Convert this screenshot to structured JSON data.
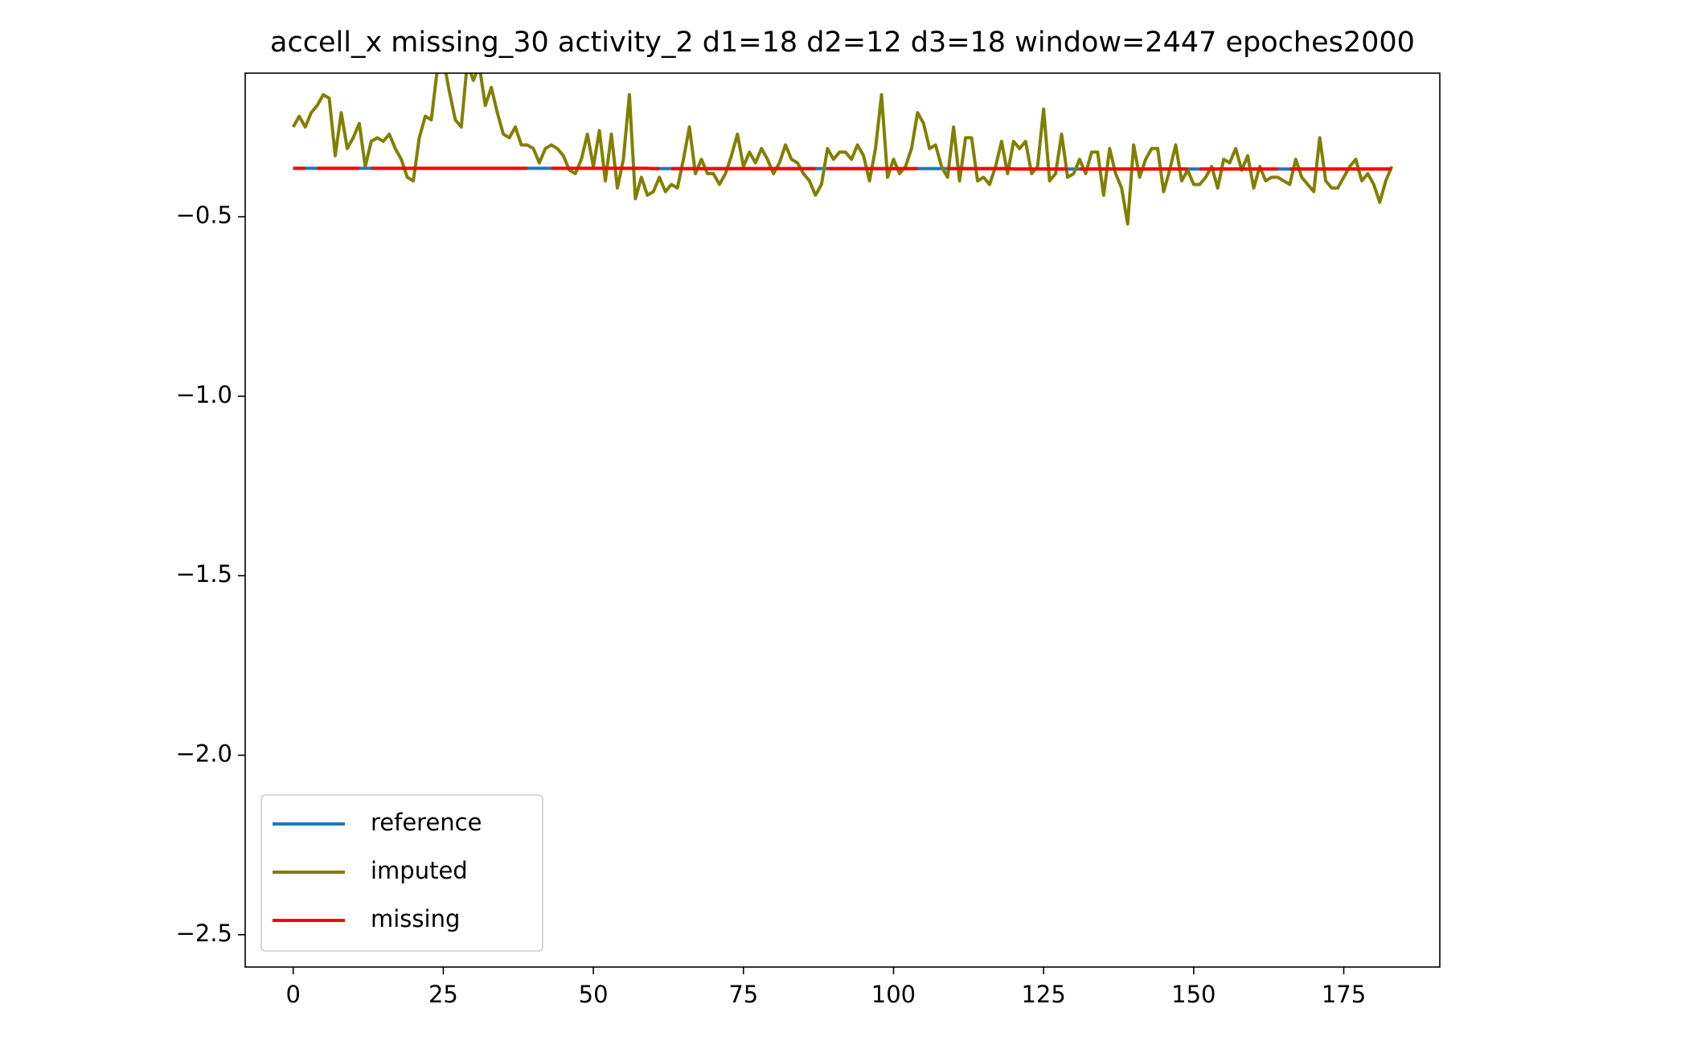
{
  "chart_data": {
    "type": "line",
    "title": "accell_x missing_30 activity_2 d1=18 d2=12 d3=18 window=2447 epoches2000",
    "x": [
      0,
      1,
      2,
      3,
      4,
      5,
      6,
      7,
      8,
      9,
      10,
      11,
      12,
      13,
      14,
      15,
      16,
      17,
      18,
      19,
      20,
      21,
      22,
      23,
      24,
      25,
      26,
      27,
      28,
      29,
      30,
      31,
      32,
      33,
      34,
      35,
      36,
      37,
      38,
      39,
      40,
      41,
      42,
      43,
      44,
      45,
      46,
      47,
      48,
      49,
      50,
      51,
      52,
      53,
      54,
      55,
      56,
      57,
      58,
      59,
      60,
      61,
      62,
      63,
      64,
      65,
      66,
      67,
      68,
      69,
      70,
      71,
      72,
      73,
      74,
      75,
      76,
      77,
      78,
      79,
      80,
      81,
      82,
      83,
      84,
      85,
      86,
      87,
      88,
      89,
      90,
      91,
      92,
      93,
      94,
      95,
      96,
      97,
      98,
      99,
      100,
      101,
      102,
      103,
      104,
      105,
      106,
      107,
      108,
      109,
      110,
      111,
      112,
      113,
      114,
      115,
      116,
      117,
      118,
      119,
      120,
      121,
      122,
      123,
      124,
      125,
      126,
      127,
      128,
      129,
      130,
      131,
      132,
      133,
      134,
      135,
      136,
      137,
      138,
      139,
      140,
      141,
      142,
      143,
      144,
      145,
      146,
      147,
      148,
      149,
      150,
      151,
      152,
      153,
      154,
      155,
      156,
      157,
      158,
      159,
      160,
      161,
      162,
      163,
      164,
      165,
      166,
      167,
      168,
      169,
      170,
      171,
      172,
      173,
      174,
      175,
      176,
      177,
      178,
      179,
      180,
      181,
      182,
      183
    ],
    "series": [
      {
        "name": "reference",
        "color": "#1f77b4",
        "values": [
          -0.365,
          -0.365,
          -0.365,
          -0.365,
          -0.365,
          -0.365,
          -0.365,
          -0.365,
          -0.365,
          -0.365,
          -0.365,
          -0.365,
          -0.365,
          -0.365,
          -0.365,
          -0.365,
          -0.365,
          -0.365,
          -0.365,
          -0.365,
          -0.365,
          -0.365,
          -0.365,
          -0.365,
          -0.365,
          -0.365,
          -0.365,
          -0.365,
          -0.365,
          -0.365,
          -0.365,
          -0.365,
          -0.365,
          -0.365,
          -0.365,
          -0.365,
          -0.365,
          -0.365,
          -0.365,
          -0.365,
          -0.365,
          -0.365,
          -0.365,
          -0.365,
          -0.365,
          -0.365,
          -0.365,
          -0.365,
          -0.365,
          -0.365,
          -0.365,
          -0.365,
          -0.365,
          -0.365,
          -0.365,
          -0.365,
          -0.365,
          -0.365,
          -0.365,
          -0.365,
          -0.366,
          -0.366,
          -0.366,
          -0.366,
          -0.366,
          -0.366,
          -0.366,
          -0.366,
          -0.366,
          -0.366,
          -0.366,
          -0.366,
          -0.366,
          -0.366,
          -0.366,
          -0.366,
          -0.366,
          -0.366,
          -0.366,
          -0.366,
          -0.366,
          -0.366,
          -0.366,
          -0.366,
          -0.366,
          -0.366,
          -0.366,
          -0.366,
          -0.366,
          -0.366,
          -0.366,
          -0.366,
          -0.366,
          -0.366,
          -0.366,
          -0.366,
          -0.366,
          -0.366,
          -0.366,
          -0.366,
          -0.366,
          -0.366,
          -0.366,
          -0.366,
          -0.366,
          -0.366,
          -0.366,
          -0.366,
          -0.366,
          -0.366,
          -0.366,
          -0.366,
          -0.366,
          -0.366,
          -0.366,
          -0.366,
          -0.366,
          -0.366,
          -0.366,
          -0.366,
          -0.367,
          -0.367,
          -0.367,
          -0.367,
          -0.367,
          -0.367,
          -0.367,
          -0.367,
          -0.367,
          -0.367,
          -0.367,
          -0.367,
          -0.367,
          -0.367,
          -0.367,
          -0.367,
          -0.367,
          -0.367,
          -0.367,
          -0.367,
          -0.367,
          -0.367,
          -0.367,
          -0.367,
          -0.367,
          -0.367,
          -0.367,
          -0.367,
          -0.367,
          -0.367,
          -0.367,
          -0.367,
          -0.367,
          -0.367,
          -0.367,
          -0.367,
          -0.367,
          -0.367,
          -0.367,
          -0.367,
          -0.367,
          -0.367,
          -0.367,
          -0.367,
          -0.367,
          -0.367,
          -0.367,
          -0.367,
          -0.367,
          -0.367,
          -0.367,
          -0.367,
          -0.367,
          -0.367,
          -0.367,
          -0.367,
          -0.367,
          -0.367,
          -0.367,
          -0.367,
          -0.367,
          -0.367,
          -0.367,
          -0.367
        ]
      },
      {
        "name": "imputed",
        "color": "#808000",
        "values": [
          -0.25,
          -0.22,
          -0.25,
          -0.21,
          -0.19,
          -0.16,
          -0.17,
          -0.33,
          -0.21,
          -0.31,
          -0.28,
          -0.24,
          -0.36,
          -0.29,
          -0.28,
          -0.29,
          -0.27,
          -0.31,
          -0.34,
          -0.39,
          -0.4,
          -0.28,
          -0.22,
          -0.23,
          -0.09,
          -0.06,
          -0.15,
          -0.23,
          -0.25,
          -0.07,
          -0.12,
          -0.08,
          -0.19,
          -0.14,
          -0.21,
          -0.27,
          -0.28,
          -0.25,
          -0.3,
          -0.3,
          -0.31,
          -0.35,
          -0.31,
          -0.3,
          -0.31,
          -0.33,
          -0.37,
          -0.38,
          -0.34,
          -0.27,
          -0.36,
          -0.26,
          -0.4,
          -0.27,
          -0.42,
          -0.34,
          -0.16,
          -0.45,
          -0.39,
          -0.44,
          -0.43,
          -0.39,
          -0.43,
          -0.41,
          -0.42,
          -0.34,
          -0.25,
          -0.38,
          -0.34,
          -0.38,
          -0.38,
          -0.41,
          -0.38,
          -0.33,
          -0.27,
          -0.36,
          -0.32,
          -0.35,
          -0.31,
          -0.34,
          -0.38,
          -0.35,
          -0.3,
          -0.34,
          -0.35,
          -0.38,
          -0.4,
          -0.44,
          -0.41,
          -0.31,
          -0.34,
          -0.32,
          -0.32,
          -0.34,
          -0.3,
          -0.33,
          -0.4,
          -0.31,
          -0.16,
          -0.39,
          -0.34,
          -0.38,
          -0.36,
          -0.31,
          -0.21,
          -0.24,
          -0.31,
          -0.3,
          -0.36,
          -0.39,
          -0.25,
          -0.4,
          -0.28,
          -0.28,
          -0.4,
          -0.39,
          -0.41,
          -0.36,
          -0.29,
          -0.38,
          -0.29,
          -0.31,
          -0.29,
          -0.38,
          -0.36,
          -0.2,
          -0.4,
          -0.38,
          -0.27,
          -0.39,
          -0.38,
          -0.34,
          -0.38,
          -0.32,
          -0.32,
          -0.44,
          -0.31,
          -0.38,
          -0.42,
          -0.52,
          -0.3,
          -0.39,
          -0.34,
          -0.31,
          -0.31,
          -0.43,
          -0.37,
          -0.3,
          -0.4,
          -0.37,
          -0.41,
          -0.41,
          -0.39,
          -0.36,
          -0.42,
          -0.34,
          -0.35,
          -0.31,
          -0.37,
          -0.33,
          -0.42,
          -0.36,
          -0.4,
          -0.39,
          -0.39,
          -0.4,
          -0.41,
          -0.34,
          -0.39,
          -0.41,
          -0.43,
          -0.28,
          -0.4,
          -0.42,
          -0.42,
          -0.39,
          -0.36,
          -0.34,
          -0.4,
          -0.38,
          -0.41,
          -0.46,
          -0.4,
          -0.36
        ]
      },
      {
        "name": "missing",
        "color": "#ff0000",
        "values": [
          -0.365,
          -0.365,
          -0.365,
          null,
          -0.365,
          -0.365,
          -0.365,
          -0.365,
          -0.365,
          -0.365,
          -0.365,
          -0.365,
          null,
          -0.365,
          -0.365,
          -0.365,
          -0.365,
          -0.365,
          -0.365,
          -0.365,
          -0.365,
          -0.365,
          -0.365,
          -0.365,
          -0.365,
          -0.365,
          -0.365,
          -0.365,
          -0.365,
          -0.365,
          -0.365,
          -0.365,
          -0.365,
          -0.365,
          -0.365,
          -0.365,
          -0.365,
          -0.365,
          -0.365,
          -0.365,
          null,
          null,
          null,
          -0.365,
          -0.365,
          -0.365,
          -0.365,
          -0.365,
          -0.365,
          -0.365,
          -0.365,
          -0.365,
          -0.365,
          -0.365,
          -0.365,
          -0.365,
          -0.365,
          -0.365,
          -0.365,
          -0.365,
          -0.366,
          -0.366,
          null,
          -0.366,
          -0.366,
          -0.366,
          -0.366,
          -0.366,
          -0.366,
          -0.366,
          -0.366,
          -0.366,
          -0.366,
          -0.366,
          -0.366,
          -0.366,
          -0.366,
          -0.366,
          -0.366,
          -0.366,
          -0.366,
          -0.366,
          -0.366,
          -0.366,
          -0.366,
          -0.366,
          -0.366,
          -0.366,
          null,
          -0.366,
          -0.366,
          -0.366,
          -0.366,
          -0.366,
          -0.366,
          -0.366,
          -0.366,
          -0.366,
          -0.366,
          -0.366,
          -0.366,
          -0.366,
          -0.366,
          -0.366,
          -0.366,
          null,
          null,
          null,
          null,
          -0.366,
          -0.366,
          -0.366,
          -0.366,
          -0.366,
          -0.366,
          -0.366,
          -0.366,
          -0.366,
          -0.366,
          -0.366,
          -0.367,
          -0.367,
          -0.367,
          -0.367,
          -0.367,
          -0.367,
          -0.367,
          -0.367,
          -0.367,
          -0.367,
          null,
          -0.367,
          -0.367,
          -0.367,
          -0.367,
          -0.367,
          -0.367,
          -0.367,
          -0.367,
          -0.367,
          -0.367,
          -0.367,
          -0.367,
          -0.367,
          -0.367,
          -0.367,
          -0.367,
          -0.367,
          -0.367,
          -0.367,
          null,
          -0.367,
          -0.367,
          -0.367,
          -0.367,
          -0.367,
          -0.367,
          -0.367,
          -0.367,
          -0.367,
          -0.367,
          -0.367,
          -0.367,
          -0.367,
          -0.367,
          null,
          -0.367,
          -0.367,
          -0.367,
          -0.367,
          -0.367,
          -0.367,
          -0.367,
          -0.367,
          -0.367,
          -0.367,
          -0.367,
          -0.367,
          -0.367,
          -0.367,
          -0.367,
          -0.367,
          -0.367,
          -0.367
        ]
      }
    ],
    "xlim": [
      -8,
      191
    ],
    "ylim": [
      -2.59,
      -0.1
    ],
    "xticks": [
      0,
      25,
      50,
      75,
      100,
      125,
      150,
      175
    ],
    "yticks": [
      {
        "value": -2.5,
        "label": "−2.5"
      },
      {
        "value": -2.0,
        "label": "−2.0"
      },
      {
        "value": -1.5,
        "label": "−1.5"
      },
      {
        "value": -1.0,
        "label": "−1.0"
      },
      {
        "value": -0.5,
        "label": "−0.5"
      }
    ],
    "grid": false,
    "legend": "lower left"
  }
}
